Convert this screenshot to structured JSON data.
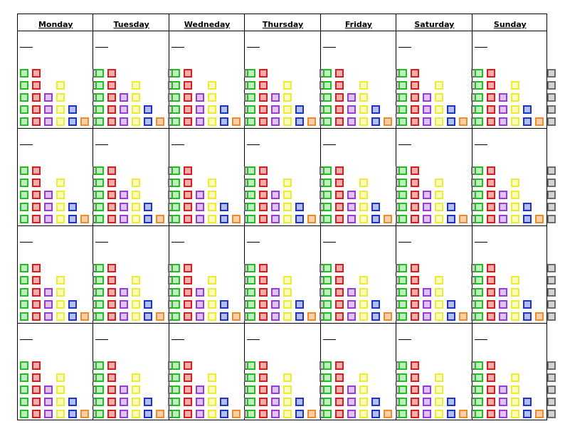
{
  "days": [
    "Monday",
    "Tuesday",
    "Wedneday",
    "Thursday",
    "Friday",
    "Saturday",
    "Sunday"
  ],
  "weeks": 4,
  "tracker_columns": [
    {
      "name": "green",
      "boxes": 5
    },
    {
      "name": "red",
      "boxes": 5
    },
    {
      "name": "purple",
      "boxes": 3
    },
    {
      "name": "yellow",
      "boxes": 4
    },
    {
      "name": "blue",
      "boxes": 2
    },
    {
      "name": "orange",
      "boxes": 1
    },
    {
      "name": "gray",
      "boxes": 5
    }
  ],
  "colors": {
    "green": "#1fbf1f",
    "red": "#d91c1c",
    "purple": "#9b3ad8",
    "yellow": "#ecec30",
    "blue": "#1c34c4",
    "orange": "#f08a2a",
    "gray": "#6c6c6c"
  }
}
